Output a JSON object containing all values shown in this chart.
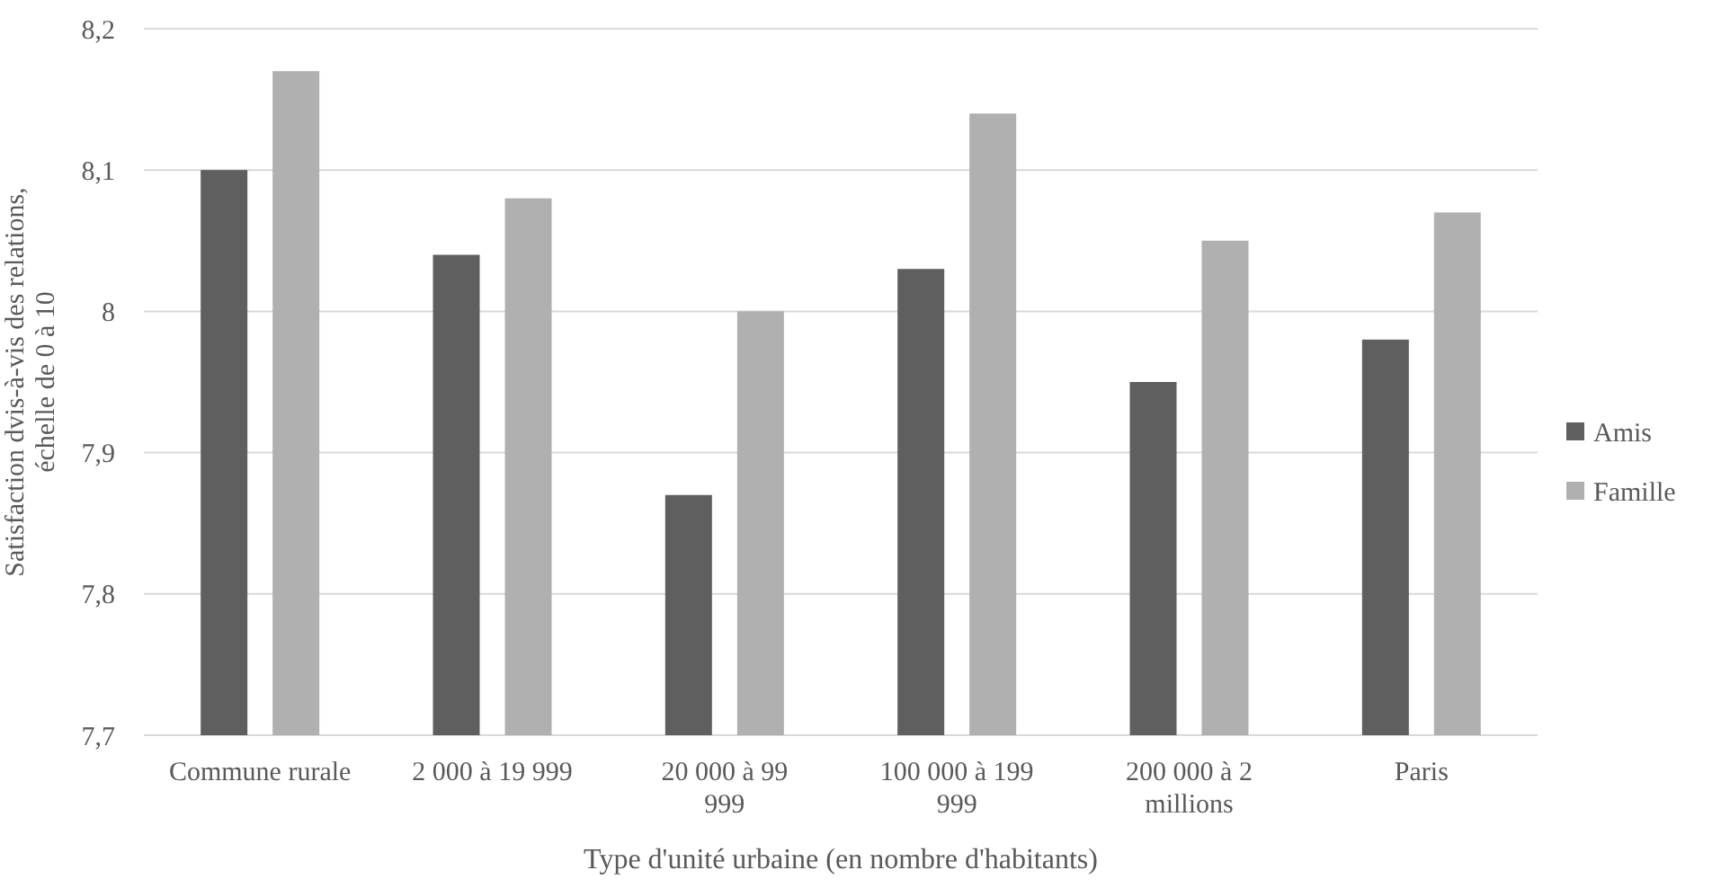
{
  "chart_data": {
    "type": "bar",
    "xlabel": "Type d'unité urbaine (en nombre d'habitants)",
    "ylabel": "Satisfaction dvis-à-vis des relations, échelle de 0 à 10",
    "categories": [
      "Commune rurale",
      "2 000 à 19 999",
      "20 000 à 99 999",
      "100 000 à 199 999",
      "200 000 à 2 millions",
      "Paris"
    ],
    "series": [
      {
        "name": "Amis",
        "color": "#5f5f5f",
        "values": [
          8.1,
          8.04,
          7.87,
          8.03,
          7.95,
          7.98
        ]
      },
      {
        "name": "Famille",
        "color": "#b0b0b0",
        "values": [
          8.17,
          8.08,
          8.0,
          8.14,
          8.05,
          8.07
        ]
      }
    ],
    "ylim": [
      7.7,
      8.2
    ],
    "yticks": [
      {
        "value": 7.7,
        "label": "7,7"
      },
      {
        "value": 7.8,
        "label": "7,8"
      },
      {
        "value": 7.9,
        "label": "7,9"
      },
      8,
      {
        "value": 8.1,
        "label": "8,1"
      },
      {
        "value": 8.2,
        "label": "8,2"
      }
    ],
    "grid": "y",
    "legend": "right"
  }
}
